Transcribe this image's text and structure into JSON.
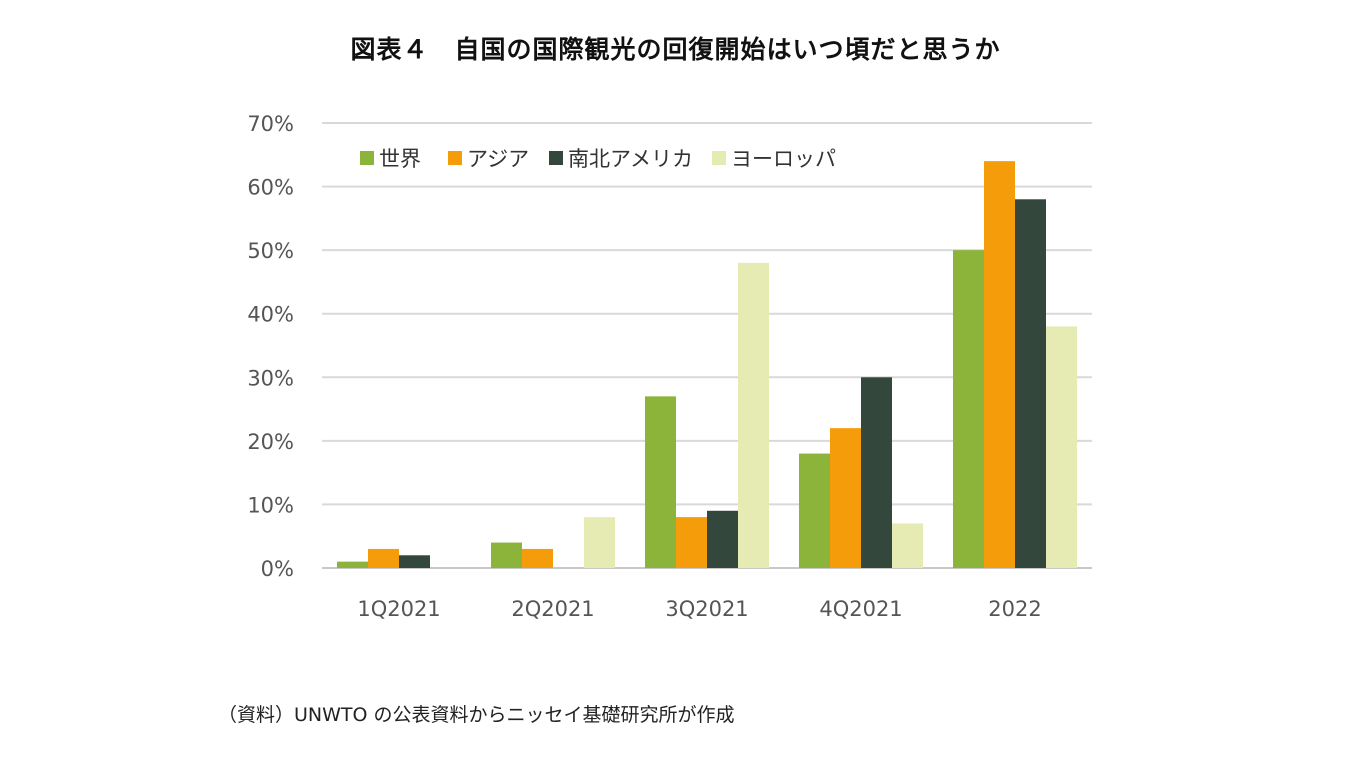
{
  "title": "図表４　自国の国際観光の回復開始はいつ頃だと思うか",
  "source": "（資料）UNWTO の公表資料からニッセイ基礎研究所が作成",
  "chart_data": {
    "type": "bar",
    "categories": [
      "1Q2021",
      "2Q2021",
      "3Q2021",
      "4Q2021",
      "2022"
    ],
    "ylim": [
      0,
      70
    ],
    "yticks": [
      0,
      10,
      20,
      30,
      40,
      50,
      60,
      70
    ],
    "ytick_format": "%",
    "grid": true,
    "legend_position": "top-left",
    "series": [
      {
        "name": "世界",
        "color": "#8db43a",
        "values": [
          1,
          4,
          27,
          18,
          50
        ]
      },
      {
        "name": "アジア",
        "color": "#f59c0b",
        "values": [
          3,
          3,
          8,
          22,
          64
        ]
      },
      {
        "name": "南北アメリカ",
        "color": "#34473c",
        "values": [
          2,
          0,
          9,
          30,
          58
        ]
      },
      {
        "name": "ヨーロッパ",
        "color": "#e6ebb4",
        "values": [
          0,
          8,
          48,
          7,
          38
        ]
      }
    ]
  }
}
